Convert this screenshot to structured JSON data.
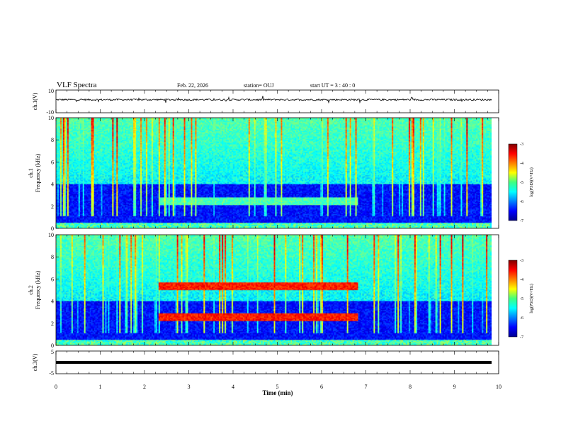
{
  "header": {
    "title": "VLF Spectra",
    "date": "Feb. 22, 2026",
    "station": "station= OUJ",
    "start": "start  UT =   3 : 40 : 0"
  },
  "chart_data": [
    {
      "type": "line",
      "ylabel": "ch.1(V)",
      "ylim": [
        -10,
        10
      ],
      "yticks": [
        "10",
        "-10"
      ],
      "description_values": {
        "baseline": 1.5,
        "noise_amplitude": 1.5
      }
    },
    {
      "type": "heatmap",
      "ylabel_top": "ch.1",
      "ylabel": "Frequency (kHz)",
      "ylim": [
        0,
        10
      ],
      "yticks": [
        "0",
        "2",
        "4",
        "6",
        "8",
        "10"
      ],
      "colorbar": {
        "label": "log(PSD)(V²/Hz)",
        "range": [
          -7,
          -3
        ],
        "ticks": [
          "-3",
          "-4",
          "-5",
          "-6",
          "-7"
        ]
      },
      "features": [
        {
          "name": "narrowband",
          "t_start": 2.3,
          "t_end": 6.8,
          "f_khz": 2.4,
          "level": 0.45
        }
      ]
    },
    {
      "type": "heatmap",
      "ylabel_top": "ch.2",
      "ylabel": "Frequency (kHz)",
      "ylim": [
        0,
        10
      ],
      "yticks": [
        "0",
        "2",
        "4",
        "6",
        "8",
        "10"
      ],
      "colorbar": {
        "label": "log(PSD)(V²/Hz)",
        "range": [
          -7,
          -3
        ],
        "ticks": [
          "-3",
          "-4",
          "-5",
          "-6",
          "-7"
        ]
      },
      "features": [
        {
          "name": "band-low",
          "t_start": 2.3,
          "t_end": 6.8,
          "f_khz": 2.5,
          "level": 0.85
        },
        {
          "name": "band-high",
          "t_start": 2.3,
          "t_end": 6.8,
          "f_khz": 5.3,
          "level": 0.85
        }
      ]
    },
    {
      "type": "line",
      "ylabel": "ch.3(V)",
      "ylim": [
        -5,
        5
      ],
      "yticks": [
        "5",
        "-5"
      ],
      "description_values": {
        "constant": 0
      }
    }
  ],
  "xaxis": {
    "label": "Time (min)",
    "ticks": [
      "0",
      "1",
      "2",
      "3",
      "4",
      "5",
      "6",
      "7",
      "8",
      "9",
      "10"
    ],
    "range": [
      0,
      10
    ]
  }
}
